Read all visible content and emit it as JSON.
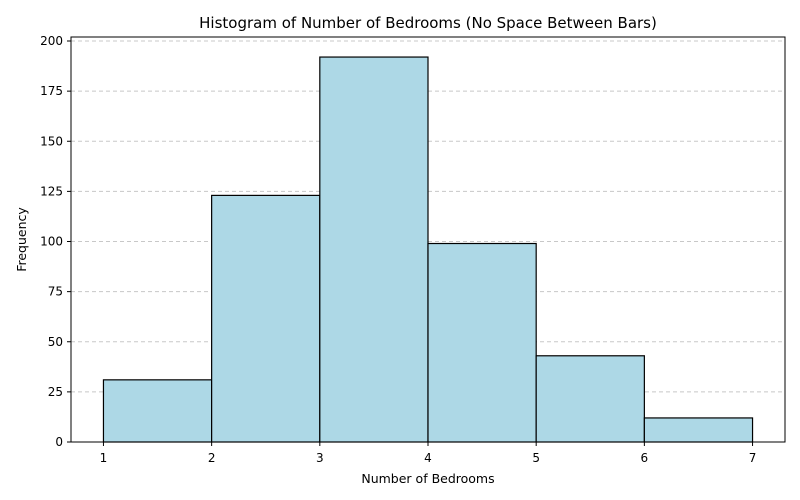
{
  "chart_data": {
    "type": "bar",
    "title": "Histogram of Number of Bedrooms (No Space Between Bars)",
    "xlabel": "Number of Bedrooms",
    "ylabel": "Frequency",
    "bins": [
      {
        "start": 1,
        "end": 2,
        "value": 31
      },
      {
        "start": 2,
        "end": 3,
        "value": 123
      },
      {
        "start": 3,
        "end": 4,
        "value": 192
      },
      {
        "start": 4,
        "end": 5,
        "value": 99
      },
      {
        "start": 5,
        "end": 6,
        "value": 43
      },
      {
        "start": 6,
        "end": 7,
        "value": 12
      }
    ],
    "xlim": [
      0.7,
      7.3
    ],
    "ylim": [
      0,
      202
    ],
    "xticks": [
      1,
      2,
      3,
      4,
      5,
      6,
      7
    ],
    "yticks": [
      0,
      25,
      50,
      75,
      100,
      125,
      150,
      175,
      200
    ],
    "grid": "y-dashed",
    "bar_color": "#add8e6",
    "edge_color": "#000000",
    "grid_color": "#c8c8c8"
  }
}
